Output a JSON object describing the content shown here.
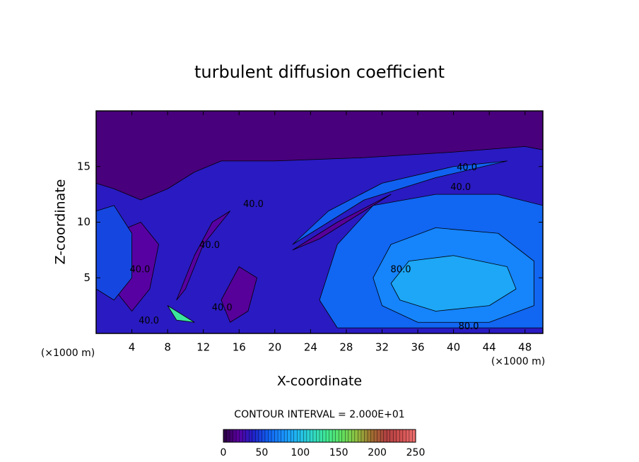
{
  "chart_data": {
    "type": "contour",
    "title": "turbulent diffusion coefficient",
    "xlabel": "X-coordinate",
    "ylabel": "Z-coordinate",
    "xunit": "(×1000 m)",
    "yunit": "(×1000 m)",
    "xlim": [
      0,
      50
    ],
    "ylim": [
      0,
      20
    ],
    "xticks": [
      4,
      8,
      12,
      16,
      20,
      24,
      28,
      32,
      36,
      40,
      44,
      48
    ],
    "yticks": [
      5,
      10,
      15
    ],
    "contour_interval_label": "CONTOUR INTERVAL = 2.000E+01",
    "clim": [
      0,
      250
    ],
    "cticks": [
      0,
      50,
      100,
      150,
      200,
      250
    ],
    "colormap": [
      "#2a0040",
      "#5a00a0",
      "#2020c8",
      "#1060f0",
      "#1890ff",
      "#20b8f0",
      "#30d8c8",
      "#40e890",
      "#60e060",
      "#90c040",
      "#a07030",
      "#b04040",
      "#d05050",
      "#f07070"
    ],
    "background_level": 12,
    "regions": [
      {
        "level": 35,
        "points": [
          [
            0,
            13.5
          ],
          [
            2,
            13
          ],
          [
            5,
            12
          ],
          [
            8,
            13
          ],
          [
            11,
            14.5
          ],
          [
            14,
            15.5
          ],
          [
            20,
            15.5
          ],
          [
            30,
            15.8
          ],
          [
            40,
            16.3
          ],
          [
            48,
            16.8
          ],
          [
            50,
            16.5
          ],
          [
            50,
            0
          ],
          [
            0,
            0
          ]
        ]
      },
      {
        "level": 60,
        "points": [
          [
            25,
            3
          ],
          [
            27,
            8
          ],
          [
            31,
            11.5
          ],
          [
            38,
            12.5
          ],
          [
            45,
            12.5
          ],
          [
            50,
            11.5
          ],
          [
            50,
            0.5
          ],
          [
            35,
            0.5
          ],
          [
            27,
            0.5
          ]
        ]
      },
      {
        "level": 72,
        "points": [
          [
            31,
            5
          ],
          [
            33,
            8
          ],
          [
            38,
            9.5
          ],
          [
            45,
            9
          ],
          [
            49,
            6.5
          ],
          [
            49,
            2.5
          ],
          [
            44,
            1
          ],
          [
            36,
            1
          ],
          [
            32,
            2.5
          ]
        ]
      },
      {
        "level": 88,
        "points": [
          [
            33,
            4.5
          ],
          [
            35,
            6.5
          ],
          [
            40,
            7
          ],
          [
            46,
            6
          ],
          [
            47,
            4
          ],
          [
            44,
            2.5
          ],
          [
            38,
            2
          ],
          [
            34,
            3
          ]
        ]
      },
      {
        "level": 20,
        "points": [
          [
            2,
            9
          ],
          [
            5,
            10
          ],
          [
            7,
            8
          ],
          [
            6,
            4
          ],
          [
            4,
            2
          ],
          [
            2,
            4
          ]
        ]
      },
      {
        "level": 50,
        "points": [
          [
            0,
            11
          ],
          [
            2,
            11.5
          ],
          [
            4,
            9
          ],
          [
            4,
            5
          ],
          [
            2,
            3
          ],
          [
            0,
            4
          ]
        ]
      },
      {
        "level": 18,
        "points": [
          [
            14,
            3
          ],
          [
            16,
            6
          ],
          [
            18,
            5
          ],
          [
            17,
            2
          ],
          [
            15,
            1
          ]
        ]
      },
      {
        "level": 58,
        "points": [
          [
            22,
            8
          ],
          [
            26,
            11
          ],
          [
            32,
            13.5
          ],
          [
            40,
            15
          ],
          [
            46,
            15.5
          ],
          [
            38,
            14
          ],
          [
            30,
            12
          ],
          [
            24,
            9
          ]
        ]
      },
      {
        "level": 18,
        "points": [
          [
            22,
            7.5
          ],
          [
            27,
            10
          ],
          [
            33,
            12.5
          ],
          [
            30,
            11
          ],
          [
            25,
            8.5
          ]
        ]
      },
      {
        "level": 20,
        "points": [
          [
            9,
            3
          ],
          [
            11,
            7
          ],
          [
            13,
            10
          ],
          [
            15,
            11
          ],
          [
            12,
            8
          ],
          [
            10,
            4
          ]
        ]
      },
      {
        "level": 130,
        "points": [
          [
            8,
            2.5
          ],
          [
            10,
            1.5
          ],
          [
            11,
            1
          ],
          [
            9,
            1.2
          ]
        ]
      }
    ],
    "contour_labels": [
      {
        "value": 40,
        "label": "40.0",
        "x": 41.5,
        "z": 14.9
      },
      {
        "value": 40,
        "label": "40.0",
        "x": 40.8,
        "z": 13.1
      },
      {
        "value": 40,
        "label": "40.0",
        "x": 17.6,
        "z": 11.6
      },
      {
        "value": 40,
        "label": "40.0",
        "x": 12.7,
        "z": 7.9
      },
      {
        "value": 40,
        "label": "40.0",
        "x": 4.9,
        "z": 5.7
      },
      {
        "value": 40,
        "label": "40.0",
        "x": 5.9,
        "z": 1.1
      },
      {
        "value": 40,
        "label": "40.0",
        "x": 14.1,
        "z": 2.3
      },
      {
        "value": 80,
        "label": "80.0",
        "x": 34.1,
        "z": 5.7
      },
      {
        "value": 80,
        "label": "80.0",
        "x": 41.7,
        "z": 0.6
      }
    ]
  }
}
